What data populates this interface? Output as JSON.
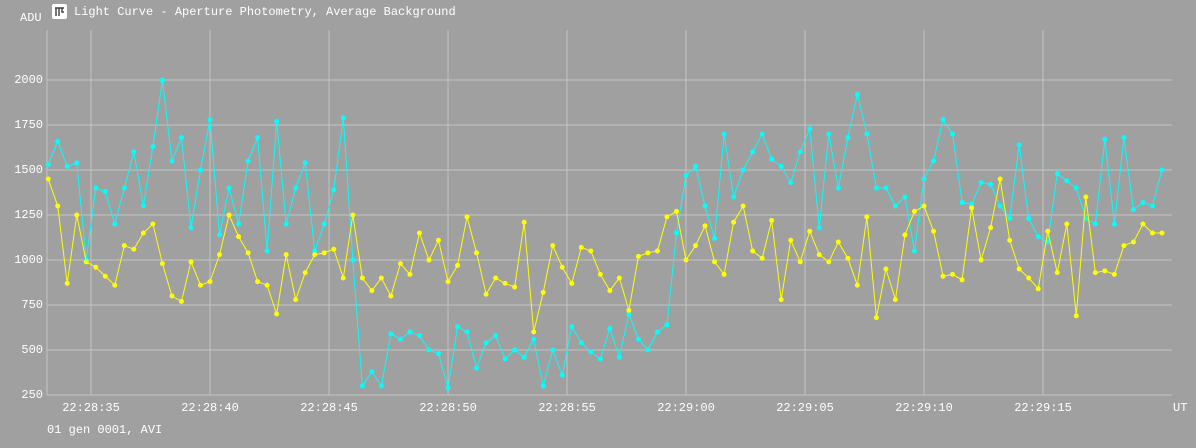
{
  "chart_data": {
    "type": "line",
    "title": "Light Curve - Aperture Photometry, Average Background",
    "y_label": "ADU",
    "x_label": "UT",
    "footer": "01 gen 0001, AVI",
    "x": [
      80913.2,
      80913.6,
      80914,
      80914.4,
      80914.8,
      80915.2,
      80915.6,
      80916,
      80916.4,
      80916.8,
      80917.2,
      80917.6,
      80918,
      80918.4,
      80918.8,
      80919.2,
      80919.6,
      80920,
      80920.4,
      80920.8,
      80921.2,
      80921.6,
      80922,
      80922.4,
      80922.8,
      80923.2,
      80923.6,
      80924,
      80924.4,
      80924.8,
      80925.2,
      80925.6,
      80926,
      80926.4,
      80926.8,
      80927.2,
      80927.6,
      80928,
      80928.4,
      80928.8,
      80929.2,
      80929.6,
      80930,
      80930.4,
      80930.8,
      80931.2,
      80931.6,
      80932,
      80932.4,
      80932.8,
      80933.2,
      80933.6,
      80934,
      80934.4,
      80934.8,
      80935.2,
      80935.6,
      80936,
      80936.4,
      80936.8,
      80937.2,
      80937.6,
      80938,
      80938.4,
      80938.8,
      80939.2,
      80939.6,
      80940,
      80940.4,
      80940.8,
      80941.2,
      80941.6,
      80942,
      80942.4,
      80942.8,
      80943.2,
      80943.6,
      80944,
      80944.4,
      80944.8,
      80945.2,
      80945.6,
      80946,
      80946.4,
      80946.8,
      80947.2,
      80947.6,
      80948,
      80948.4,
      80948.8,
      80949.2,
      80949.6,
      80950,
      80950.4,
      80950.8,
      80951.2,
      80951.6,
      80952,
      80952.4,
      80952.8,
      80953.2,
      80953.6,
      80954,
      80954.4,
      80954.8,
      80955.2,
      80955.6,
      80956,
      80956.4,
      80956.8,
      80957.2,
      80957.6,
      80958,
      80958.4,
      80958.8,
      80959.2,
      80959.6,
      80960
    ],
    "series": [
      {
        "color": "#00ffff",
        "values": [
          1530,
          1660,
          1520,
          1540,
          1000,
          1400,
          1380,
          1200,
          1400,
          1600,
          1300,
          1630,
          2000,
          1550,
          1680,
          1180,
          1500,
          1780,
          1140,
          1400,
          1200,
          1550,
          1680,
          1050,
          1770,
          1200,
          1400,
          1540,
          1050,
          1200,
          1390,
          1790,
          1000,
          300,
          380,
          300,
          590,
          560,
          600,
          580,
          500,
          480,
          290,
          630,
          600,
          400,
          540,
          580,
          450,
          500,
          460,
          560,
          300,
          500,
          360,
          630,
          540,
          490,
          450,
          620,
          460,
          700,
          560,
          500,
          600,
          640,
          1150,
          1470,
          1520,
          1300,
          1120,
          1700,
          1350,
          1500,
          1600,
          1700,
          1560,
          1520,
          1430,
          1600,
          1730,
          1180,
          1700,
          1400,
          1680,
          1920,
          1700,
          1400,
          1400,
          1300,
          1350,
          1050,
          1450,
          1550,
          1780,
          1700,
          1320,
          1310,
          1430,
          1420,
          1300,
          1230,
          1640,
          1230,
          1130,
          1100,
          1480,
          1440,
          1400,
          1230,
          1200,
          1670,
          1200,
          1680,
          1280,
          1320,
          1300,
          1500
        ]
      },
      {
        "color": "#ffff00",
        "values": [
          1450,
          1300,
          870,
          1250,
          990,
          960,
          910,
          860,
          1080,
          1060,
          1150,
          1200,
          980,
          800,
          770,
          990,
          860,
          880,
          1030,
          1250,
          1130,
          1040,
          880,
          860,
          700,
          1030,
          780,
          930,
          1030,
          1040,
          1060,
          900,
          1250,
          900,
          830,
          900,
          800,
          980,
          920,
          1150,
          1000,
          1110,
          880,
          970,
          1240,
          1040,
          810,
          900,
          870,
          850,
          1210,
          600,
          820,
          1080,
          960,
          870,
          1070,
          1050,
          920,
          830,
          900,
          720,
          1020,
          1040,
          1050,
          1240,
          1270,
          1000,
          1080,
          1190,
          990,
          920,
          1210,
          1300,
          1050,
          1010,
          1220,
          780,
          1110,
          990,
          1160,
          1030,
          990,
          1100,
          1010,
          860,
          1240,
          680,
          950,
          780,
          1140,
          1270,
          1300,
          1160,
          910,
          920,
          890,
          1290,
          1000,
          1180,
          1450,
          1110,
          950,
          900,
          840,
          1160,
          930,
          1200,
          690,
          1350,
          930,
          940,
          920,
          1080,
          1100,
          1200,
          1150,
          1150
        ]
      }
    ],
    "xlim": [
      80913.15,
      80960.42
    ],
    "xticks": [
      {
        "value": 80915,
        "label": "22:28:35"
      },
      {
        "value": 80920,
        "label": "22:28:40"
      },
      {
        "value": 80925,
        "label": "22:28:45"
      },
      {
        "value": 80930,
        "label": "22:28:50"
      },
      {
        "value": 80935,
        "label": "22:28:55"
      },
      {
        "value": 80940,
        "label": "22:29:00"
      },
      {
        "value": 80945,
        "label": "22:29:05"
      },
      {
        "value": 80950,
        "label": "22:29:10"
      },
      {
        "value": 80955,
        "label": "22:29:15"
      }
    ],
    "ylim": [
      250,
      2278
    ],
    "yticks": [
      250,
      500,
      750,
      1000,
      1250,
      1500,
      1750,
      2000
    ],
    "grid": true
  }
}
